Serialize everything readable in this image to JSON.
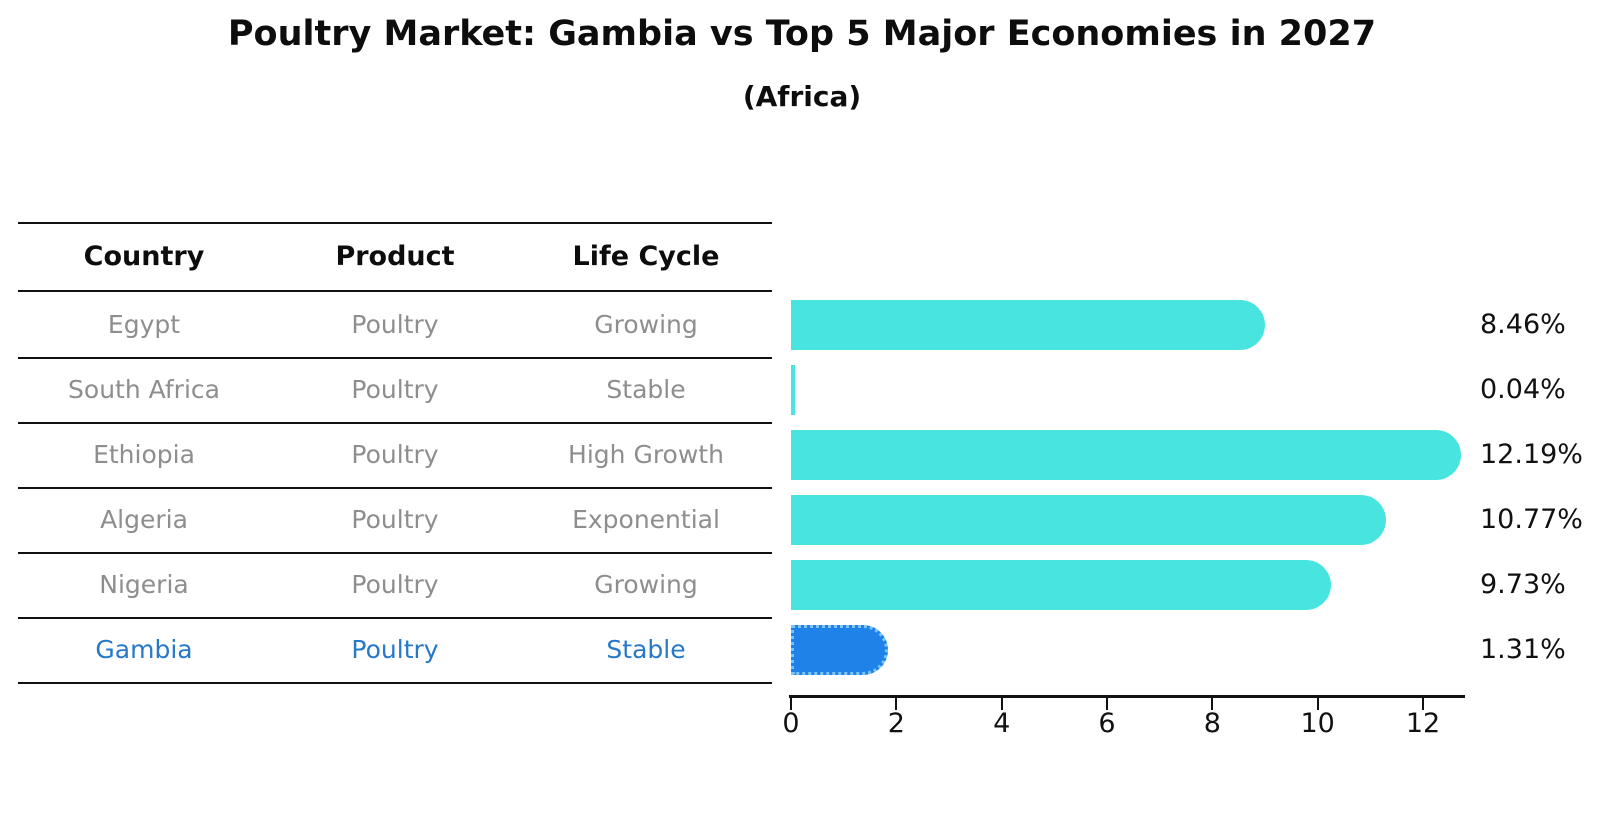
{
  "title": "Poultry Market: Gambia vs Top 5 Major Economies in 2027",
  "subtitle": "(Africa)",
  "table": {
    "headers": [
      "Country",
      "Product",
      "Life Cycle"
    ],
    "rows": [
      {
        "country": "Egypt",
        "product": "Poultry",
        "life_cycle": "Growing",
        "highlighted": false
      },
      {
        "country": "South Africa",
        "product": "Poultry",
        "life_cycle": "Stable",
        "highlighted": false
      },
      {
        "country": "Ethiopia",
        "product": "Poultry",
        "life_cycle": "High Growth",
        "highlighted": false
      },
      {
        "country": "Algeria",
        "product": "Poultry",
        "life_cycle": "Exponential",
        "highlighted": false
      },
      {
        "country": "Nigeria",
        "product": "Poultry",
        "life_cycle": "Growing",
        "highlighted": false
      },
      {
        "country": "Gambia",
        "product": "Poultry",
        "life_cycle": "Stable",
        "highlighted": true
      }
    ]
  },
  "chart_data": {
    "type": "bar",
    "orientation": "horizontal",
    "categories": [
      "Egypt",
      "South Africa",
      "Ethiopia",
      "Algeria",
      "Nigeria",
      "Gambia"
    ],
    "values": [
      8.46,
      0.04,
      12.19,
      10.77,
      9.73,
      1.31
    ],
    "value_labels": [
      "8.46%",
      "0.04%",
      "12.19%",
      "10.77%",
      "9.73%",
      "1.31%"
    ],
    "xticks": [
      0,
      2,
      4,
      6,
      8,
      10,
      12
    ],
    "xlim": [
      0,
      12.8
    ],
    "grid": false,
    "highlight_index": 5
  },
  "colors": {
    "bar": "#48e5e0",
    "highlight_bar": "#1e82e8",
    "highlight_text": "#2679c8",
    "row_text": "#8e8e8e",
    "axis_text": "#111111"
  }
}
